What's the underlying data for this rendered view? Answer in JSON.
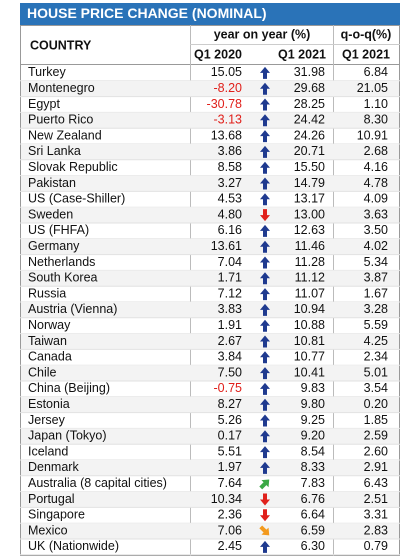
{
  "header": {
    "title": "HOUSE PRICE CHANGE (NOMINAL)"
  },
  "table": {
    "columns": {
      "country": "COUNTRY",
      "yoy": "year on year (%)",
      "yoy_q1_2020": "Q1 2020",
      "yoy_q1_2021": "Q1 2021",
      "qoq": "q-o-q(%)",
      "qoq_q1_2021": "Q1 2021"
    },
    "rows": [
      [
        "Turkey",
        "15.05",
        "up",
        "31.98",
        "6.84"
      ],
      [
        "Montenegro",
        "-8.20",
        "up",
        "29.68",
        "21.05"
      ],
      [
        "Egypt",
        "-30.78",
        "up",
        "28.25",
        "1.10"
      ],
      [
        "Puerto Rico",
        "-3.13",
        "up",
        "24.42",
        "8.30"
      ],
      [
        "New Zealand",
        "13.68",
        "up",
        "24.26",
        "10.91"
      ],
      [
        "Sri Lanka",
        "3.86",
        "up",
        "20.71",
        "2.68"
      ],
      [
        "Slovak Republic",
        "8.58",
        "up",
        "15.50",
        "4.16"
      ],
      [
        "Pakistan",
        "3.27",
        "up",
        "14.79",
        "4.78"
      ],
      [
        "US (Case-Shiller)",
        "4.53",
        "up",
        "13.17",
        "4.09"
      ],
      [
        "Sweden",
        "4.80",
        "down",
        "13.00",
        "3.63"
      ],
      [
        "US (FHFA)",
        "6.16",
        "up",
        "12.63",
        "3.50"
      ],
      [
        "Germany",
        "13.61",
        "up",
        "11.46",
        "4.02"
      ],
      [
        "Netherlands",
        "7.04",
        "up",
        "11.28",
        "5.34"
      ],
      [
        "South Korea",
        "1.71",
        "up",
        "11.12",
        "3.87"
      ],
      [
        "Russia",
        "7.12",
        "up",
        "11.07",
        "1.67"
      ],
      [
        "Austria (Vienna)",
        "3.83",
        "up",
        "10.94",
        "3.28"
      ],
      [
        "Norway",
        "1.91",
        "up",
        "10.88",
        "5.59"
      ],
      [
        "Taiwan",
        "2.67",
        "up",
        "10.81",
        "4.25"
      ],
      [
        "Canada",
        "3.84",
        "up",
        "10.77",
        "2.34"
      ],
      [
        "Chile",
        "7.50",
        "up",
        "10.41",
        "5.01"
      ],
      [
        "China (Beijing)",
        "-0.75",
        "up",
        "9.83",
        "3.54"
      ],
      [
        "Estonia",
        "8.27",
        "up",
        "9.80",
        "0.20"
      ],
      [
        "Jersey",
        "5.26",
        "up",
        "9.25",
        "1.85"
      ],
      [
        "Japan (Tokyo)",
        "0.17",
        "up",
        "9.20",
        "2.59"
      ],
      [
        "Iceland",
        "5.51",
        "up",
        "8.54",
        "2.60"
      ],
      [
        "Denmark",
        "1.97",
        "up",
        "8.33",
        "2.91"
      ],
      [
        "Australia (8 capital cities)",
        "7.64",
        "up-right",
        "7.83",
        "6.43"
      ],
      [
        "Portugal",
        "10.34",
        "down",
        "6.76",
        "2.51"
      ],
      [
        "Singapore",
        "2.36",
        "down",
        "6.64",
        "3.31"
      ],
      [
        "Mexico",
        "7.06",
        "down-right",
        "6.59",
        "2.83"
      ],
      [
        "UK (Nationwide)",
        "2.45",
        "up",
        "6.30",
        "0.79"
      ]
    ]
  }
}
